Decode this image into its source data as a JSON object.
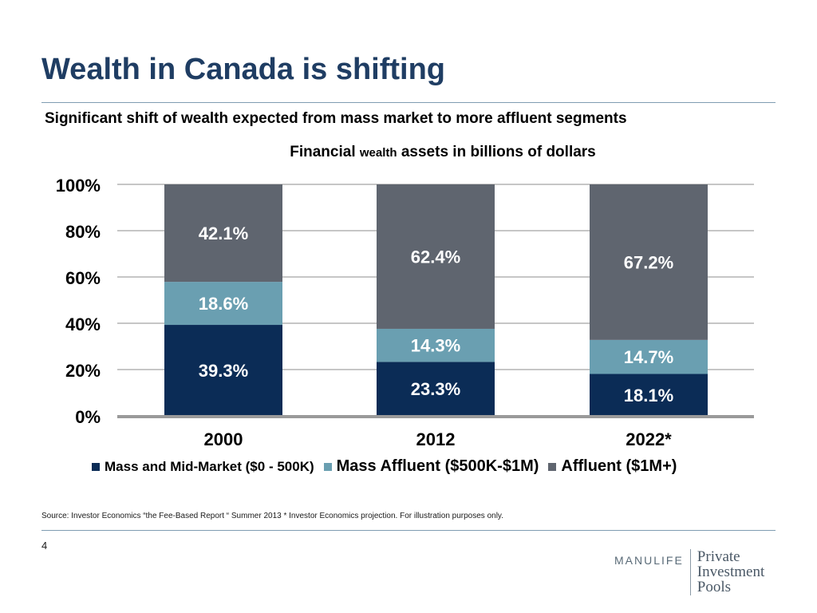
{
  "title": "Wealth in Canada is shifting",
  "subtitle": "Significant shift of wealth expected from mass market to more affluent segments",
  "chart_title": {
    "part1": "Financial ",
    "part2": "wealth",
    "part3": " assets in billions of dollars"
  },
  "chart_data": {
    "type": "bar",
    "stacked": true,
    "categories": [
      "2000",
      "2012",
      "2022*"
    ],
    "series": [
      {
        "name": "Mass and Mid-Market ($0 - 500K)",
        "color": "#0b2c56",
        "values": [
          39.3,
          23.3,
          18.1
        ],
        "labels": [
          "39.3%",
          "23.3%",
          "18.1%"
        ]
      },
      {
        "name": "Mass Affluent ($500K-$1M)",
        "color": "#6a9fb1",
        "values": [
          18.6,
          14.3,
          14.7
        ],
        "labels": [
          "18.6%",
          "14.3%",
          "14.7%"
        ]
      },
      {
        "name": "Affluent ($1M+)",
        "color": "#5f656f",
        "values": [
          42.1,
          62.4,
          67.2
        ],
        "labels": [
          "42.1%",
          "62.4%",
          "67.2%"
        ]
      }
    ],
    "ylim": [
      0,
      100
    ],
    "yticks": [
      "0%",
      "20%",
      "40%",
      "60%",
      "80%",
      "100%"
    ],
    "grid": true,
    "legend_position": "bottom"
  },
  "source": "Source: Investor Economics “the Fee-Based Report “ Summer 2013 * Investor Economics projection.  For illustration purposes only.",
  "page_number": "4",
  "logo": {
    "brand": "MANULIFE",
    "line1": "Private",
    "line2": "Investment",
    "line3": "Pools"
  }
}
